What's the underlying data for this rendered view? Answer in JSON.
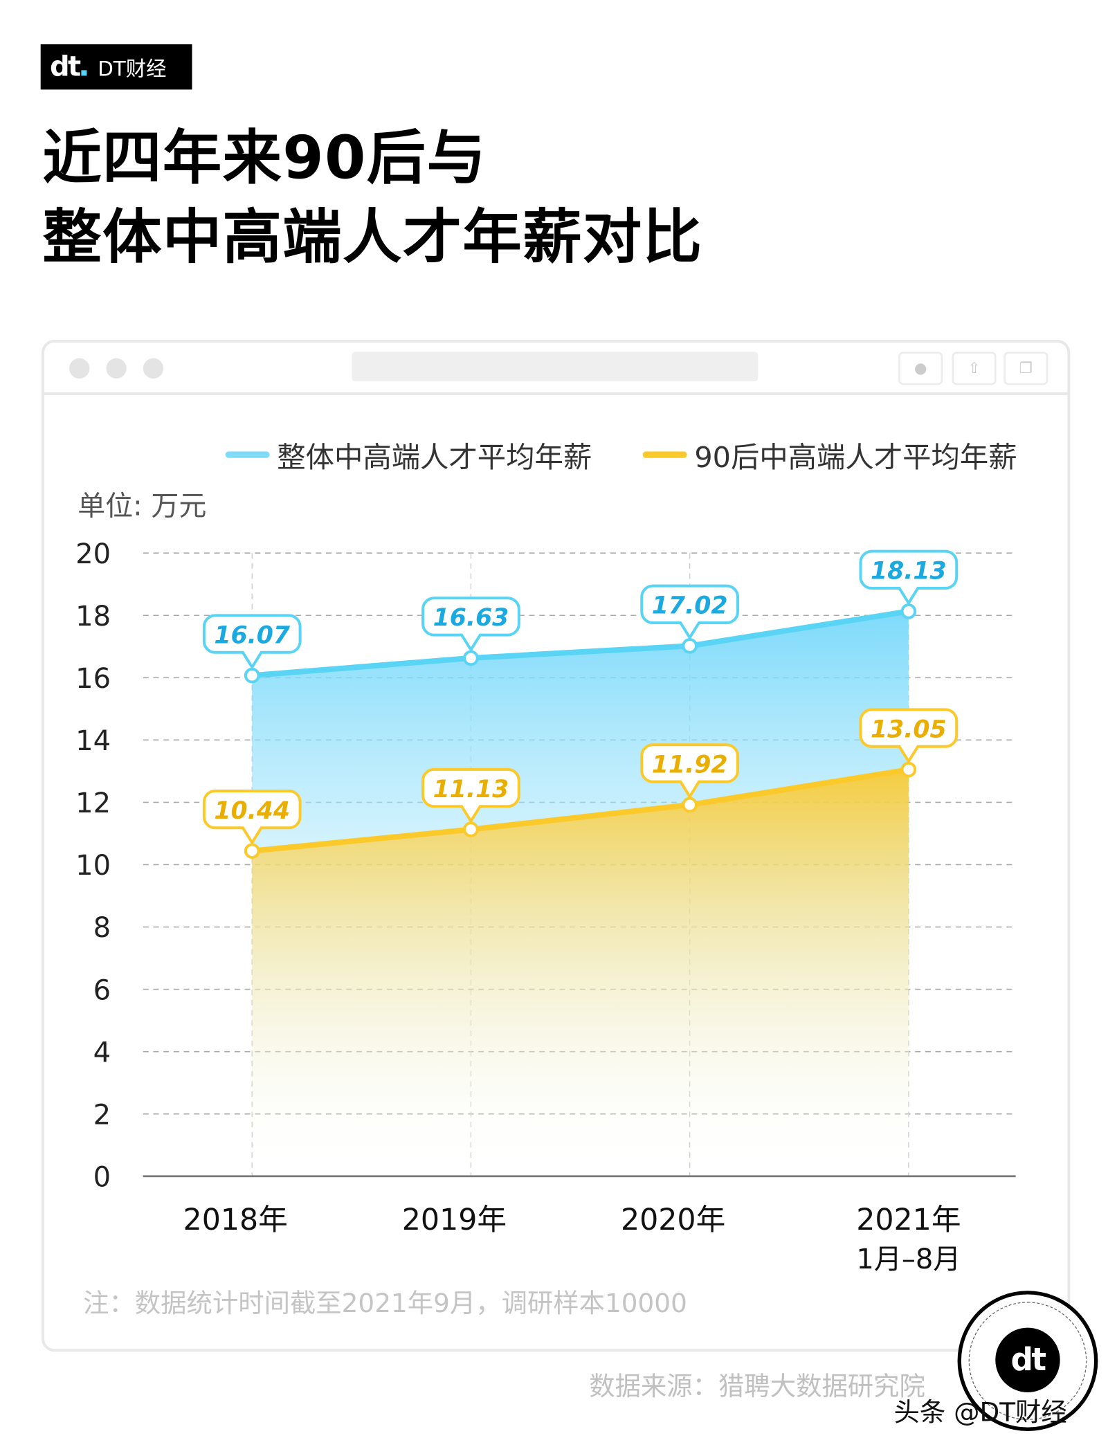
{
  "brand": {
    "logo": "dt",
    "name": "DT财经"
  },
  "title_lines": [
    "近四年来90后与",
    "整体中高端人才年薪对比"
  ],
  "colors": {
    "overall": "#5ad4f5",
    "post90": "#fcc92a",
    "overall_label": "#1aa9e0",
    "post90_label": "#e9ae00"
  },
  "window_icons": [
    "close-icon",
    "minimize-icon",
    "maximize-icon",
    "record-icon",
    "share-icon",
    "copy-icon"
  ],
  "chart_data": {
    "type": "area",
    "unit_label": "单位: 万元",
    "categories": [
      "2018年",
      "2019年",
      "2020年",
      "2021年\n1月–8月"
    ],
    "category_lines": [
      [
        "2018年"
      ],
      [
        "2019年"
      ],
      [
        "2020年"
      ],
      [
        "2021年",
        "1月–8月"
      ]
    ],
    "series": [
      {
        "name": "整体中高端人才平均年薪",
        "values": [
          16.07,
          16.63,
          17.02,
          18.13
        ],
        "labels": [
          "16.07",
          "16.63",
          "17.02",
          "18.13"
        ]
      },
      {
        "name": "90后中高端人才平均年薪",
        "values": [
          10.44,
          11.13,
          11.92,
          13.05
        ],
        "labels": [
          "10.44",
          "11.13",
          "11.92",
          "13.05"
        ]
      }
    ],
    "ylim": [
      0,
      20
    ],
    "yticks": [
      "0",
      "2",
      "4",
      "6",
      "8",
      "10",
      "12",
      "14",
      "16",
      "18",
      "20"
    ],
    "grid": true,
    "legend_position": "top"
  },
  "note": "注：数据统计时间截至2021年9月，调研样本10000",
  "source": "数据来源：猎聘大数据研究院",
  "credit": "头条 @DT财经",
  "badge_logo": "dt"
}
